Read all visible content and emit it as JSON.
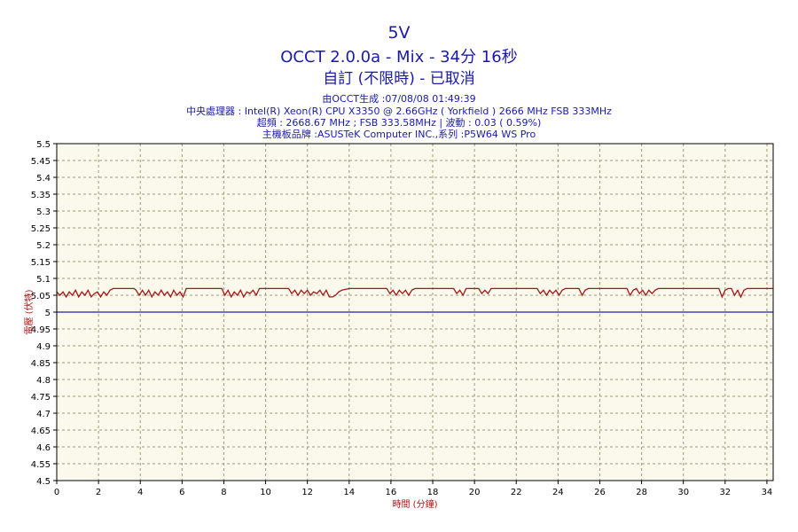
{
  "header": {
    "title": "5V",
    "subtitle": "OCCT 2.0.0a - Mix - 34分 16秒",
    "status": "自訂 (不限時) - 已取消",
    "info_lines": [
      "由OCCT生成 :07/08/08 01:49:39",
      "中央處理器 : Intel(R) Xeon(R) CPU X3350 @ 2.66GHz ( Yorkfield ) 2666 MHz FSB 333MHz",
      "超頻 : 2668.67 MHz ; FSB 333.58MHz | 波動 : 0.03 ( 0.59%)",
      "主機板品牌 :ASUSTeK Computer INC.,系列 :P5W64 WS Pro"
    ]
  },
  "colors": {
    "plot_bg": "#fbf8ec",
    "grid": "#9a9a7a",
    "series": "#a01818",
    "reference": "#2020b0",
    "text": "#1a1aa8"
  },
  "chart_data": {
    "type": "line",
    "xlabel": "時間 (分鐘)",
    "ylabel": "電壓 (伏特)",
    "xlim": [
      0,
      34.3
    ],
    "ylim": [
      4.5,
      5.5
    ],
    "x_ticks": [
      0,
      2,
      4,
      6,
      8,
      10,
      12,
      14,
      16,
      18,
      20,
      22,
      24,
      26,
      28,
      30,
      32,
      34
    ],
    "y_ticks": [
      4.5,
      4.55,
      4.6,
      4.65,
      4.7,
      4.75,
      4.8,
      4.85,
      4.9,
      4.95,
      5,
      5.05,
      5.1,
      5.15,
      5.2,
      5.25,
      5.3,
      5.35,
      5.4,
      5.45,
      5.5
    ],
    "y_tick_labels": [
      "4.5",
      "4.55",
      "4.6",
      "4.65",
      "4.7",
      "4.75",
      "4.8",
      "4.85",
      "4.9",
      "4.95",
      "5",
      "5.05",
      "5.1",
      "5.15",
      "5.2",
      "5.25",
      "5.3",
      "5.35",
      "5.4",
      "5.45",
      "5.5"
    ],
    "grid": true,
    "series": [
      {
        "color": "#a01818",
        "x": [
          0,
          0.15,
          0.3,
          0.45,
          0.6,
          0.75,
          0.9,
          1.05,
          1.2,
          1.35,
          1.5,
          1.65,
          1.8,
          1.95,
          2.1,
          2.25,
          2.4,
          2.55,
          2.7,
          3.7,
          3.8,
          3.95,
          4.1,
          4.25,
          4.4,
          4.55,
          4.7,
          4.85,
          5.0,
          5.15,
          5.3,
          5.45,
          5.6,
          5.75,
          5.9,
          6.05,
          6.2,
          7.9,
          8.05,
          8.2,
          8.35,
          8.5,
          8.65,
          8.8,
          8.95,
          9.1,
          9.25,
          9.4,
          9.55,
          9.7,
          11.1,
          11.25,
          11.4,
          11.55,
          11.7,
          11.85,
          12.0,
          12.15,
          12.3,
          12.45,
          12.6,
          12.75,
          12.9,
          13.05,
          13.2,
          13.35,
          13.5,
          13.65,
          14.0,
          15.8,
          15.95,
          16.1,
          16.25,
          16.4,
          16.55,
          16.7,
          16.85,
          17.0,
          17.15,
          19.0,
          19.15,
          19.3,
          19.45,
          19.6,
          20.2,
          20.35,
          20.5,
          20.65,
          20.8,
          23.0,
          23.15,
          23.3,
          23.45,
          23.6,
          23.75,
          23.9,
          24.05,
          24.2,
          24.35,
          25.0,
          25.15,
          25.3,
          25.45,
          27.3,
          27.45,
          27.6,
          27.75,
          27.9,
          28.05,
          28.2,
          28.35,
          28.5,
          28.65,
          28.8,
          31.7,
          31.85,
          32.0,
          32.15,
          32.3,
          32.45,
          32.6,
          32.75,
          32.9,
          33.05,
          34.3
        ],
        "y": [
          5.06,
          5.05,
          5.06,
          5.045,
          5.06,
          5.05,
          5.065,
          5.045,
          5.06,
          5.05,
          5.065,
          5.045,
          5.055,
          5.06,
          5.045,
          5.06,
          5.05,
          5.065,
          5.07,
          5.07,
          5.065,
          5.05,
          5.065,
          5.05,
          5.065,
          5.045,
          5.06,
          5.05,
          5.065,
          5.05,
          5.06,
          5.045,
          5.065,
          5.05,
          5.06,
          5.045,
          5.07,
          5.07,
          5.05,
          5.065,
          5.045,
          5.06,
          5.05,
          5.065,
          5.045,
          5.06,
          5.055,
          5.065,
          5.05,
          5.07,
          5.07,
          5.055,
          5.065,
          5.05,
          5.065,
          5.055,
          5.065,
          5.05,
          5.06,
          5.055,
          5.065,
          5.05,
          5.065,
          5.045,
          5.045,
          5.05,
          5.06,
          5.065,
          5.07,
          5.07,
          5.055,
          5.065,
          5.05,
          5.065,
          5.055,
          5.065,
          5.05,
          5.065,
          5.07,
          5.07,
          5.055,
          5.065,
          5.05,
          5.07,
          5.07,
          5.055,
          5.065,
          5.055,
          5.07,
          5.07,
          5.055,
          5.065,
          5.05,
          5.065,
          5.055,
          5.065,
          5.05,
          5.065,
          5.07,
          5.07,
          5.05,
          5.065,
          5.07,
          5.07,
          5.05,
          5.065,
          5.07,
          5.055,
          5.065,
          5.05,
          5.065,
          5.055,
          5.065,
          5.07,
          5.07,
          5.045,
          5.065,
          5.07,
          5.07,
          5.05,
          5.065,
          5.045,
          5.065,
          5.07,
          5.07
        ]
      },
      {
        "color": "#2020b0",
        "x": [
          0,
          34.3
        ],
        "y": [
          5.0,
          5.0
        ]
      }
    ]
  }
}
